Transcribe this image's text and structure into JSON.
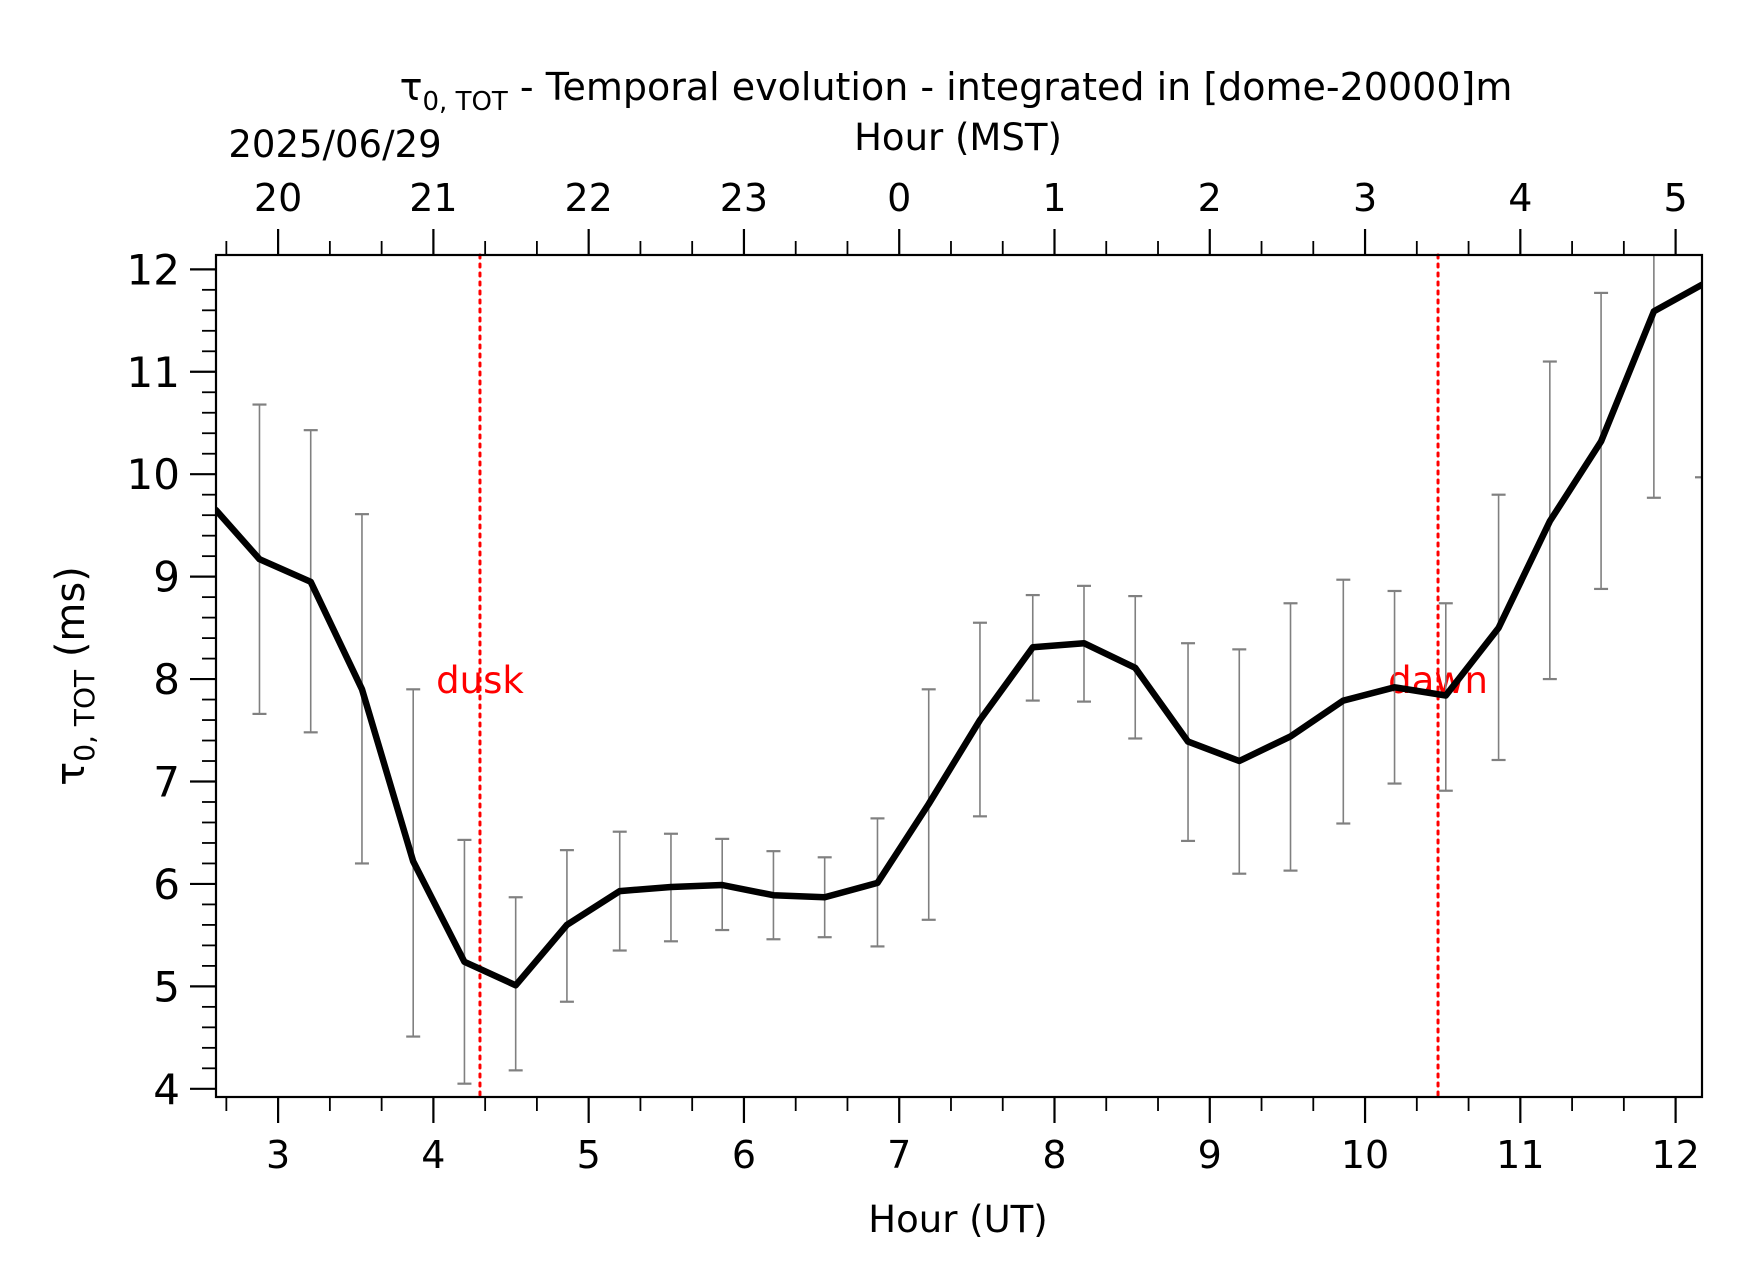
{
  "chart_data": {
    "type": "line",
    "title_symbol": "τ",
    "title_symbol_sub": "0, TOT",
    "title_rest": " - Temporal evolution - integrated in [dome-20000]m",
    "date_label": "2025/06/29",
    "xlabel": "Hour (UT)",
    "x2label": "Hour (MST)",
    "ylabel_symbol": "τ",
    "ylabel_sub": "0, TOT",
    "ylabel_rest": " (ms)",
    "xlim": [
      2.6,
      12.17
    ],
    "ylim": [
      3.92,
      12.14
    ],
    "x_ticks": [
      3,
      4,
      5,
      6,
      7,
      8,
      9,
      10,
      11,
      12
    ],
    "y_ticks": [
      4,
      5,
      6,
      7,
      8,
      9,
      10,
      11,
      12
    ],
    "mst_offset_hours": -7,
    "mst_ticks": [
      {
        "ut": 3,
        "label": "20"
      },
      {
        "ut": 4,
        "label": "21"
      },
      {
        "ut": 5,
        "label": "22"
      },
      {
        "ut": 6,
        "label": "23"
      },
      {
        "ut": 7,
        "label": "0"
      },
      {
        "ut": 8,
        "label": "1"
      },
      {
        "ut": 9,
        "label": "2"
      },
      {
        "ut": 10,
        "label": "3"
      },
      {
        "ut": 11,
        "label": "4"
      },
      {
        "ut": 12,
        "label": "5"
      }
    ],
    "series": [
      {
        "color": "#000000",
        "x": [
          2.6,
          2.88,
          3.21,
          3.54,
          3.87,
          4.2,
          4.53,
          4.86,
          5.2,
          5.53,
          5.86,
          6.19,
          6.52,
          6.86,
          7.19,
          7.52,
          7.86,
          8.19,
          8.52,
          8.86,
          9.19,
          9.52,
          9.86,
          10.19,
          10.52,
          10.86,
          11.19,
          11.52,
          11.86,
          12.17
        ],
        "y": [
          9.65,
          9.17,
          8.95,
          7.9,
          6.22,
          5.24,
          5.01,
          5.6,
          5.93,
          5.97,
          5.99,
          5.89,
          5.87,
          6.01,
          6.78,
          7.6,
          8.31,
          8.35,
          8.11,
          7.39,
          7.2,
          7.44,
          7.79,
          7.92,
          7.84,
          8.5,
          9.54,
          10.32,
          11.59,
          11.85
        ],
        "err_low": [
          null,
          7.66,
          7.48,
          6.2,
          4.51,
          4.05,
          4.18,
          4.85,
          5.35,
          5.44,
          5.55,
          5.46,
          5.48,
          5.39,
          5.65,
          6.66,
          7.79,
          7.78,
          7.42,
          6.42,
          6.1,
          6.13,
          6.59,
          6.98,
          6.91,
          7.21,
          8.0,
          8.88,
          9.77,
          9.97
        ],
        "err_high": [
          null,
          10.68,
          10.43,
          9.61,
          7.9,
          6.43,
          5.87,
          6.33,
          6.51,
          6.49,
          6.44,
          6.32,
          6.26,
          6.64,
          7.9,
          8.55,
          8.82,
          8.91,
          8.81,
          8.35,
          8.29,
          8.74,
          8.97,
          8.86,
          8.74,
          9.8,
          11.1,
          11.77,
          12.2,
          null
        ]
      }
    ],
    "errorbar_color": "#808080",
    "annotations": [
      {
        "label": "dusk",
        "x": 4.3,
        "color": "#ff0000"
      },
      {
        "label": "dawn",
        "x": 10.47,
        "color": "#ff0000"
      }
    ],
    "annotation_text_y": 8.0,
    "grid": false
  }
}
